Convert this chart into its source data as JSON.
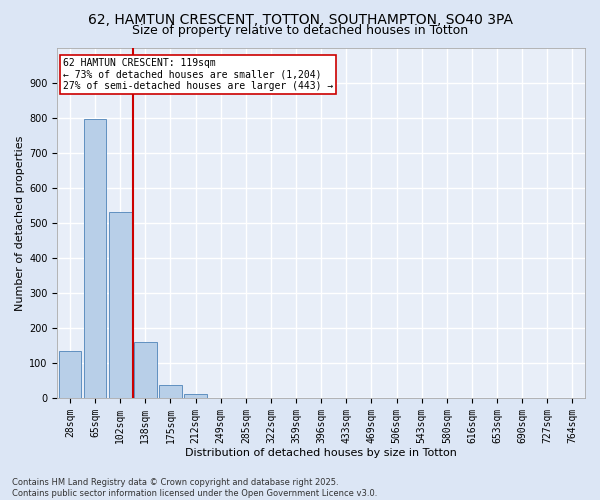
{
  "title_line1": "62, HAMTUN CRESCENT, TOTTON, SOUTHAMPTON, SO40 3PA",
  "title_line2": "Size of property relative to detached houses in Totton",
  "xlabel": "Distribution of detached houses by size in Totton",
  "ylabel": "Number of detached properties",
  "footnote1": "Contains HM Land Registry data © Crown copyright and database right 2025.",
  "footnote2": "Contains public sector information licensed under the Open Government Licence v3.0.",
  "categories": [
    "28sqm",
    "65sqm",
    "102sqm",
    "138sqm",
    "175sqm",
    "212sqm",
    "249sqm",
    "285sqm",
    "322sqm",
    "359sqm",
    "396sqm",
    "433sqm",
    "469sqm",
    "506sqm",
    "543sqm",
    "580sqm",
    "616sqm",
    "653sqm",
    "690sqm",
    "727sqm",
    "764sqm"
  ],
  "values": [
    135,
    795,
    530,
    160,
    37,
    12,
    0,
    0,
    0,
    0,
    0,
    0,
    0,
    0,
    0,
    0,
    0,
    0,
    0,
    0,
    0
  ],
  "bar_color": "#b8cfe8",
  "bar_edge_color": "#6090c0",
  "vline_x_pos": 2.5,
  "vline_color": "#cc0000",
  "annotation_line1": "62 HAMTUN CRESCENT: 119sqm",
  "annotation_line2": "← 73% of detached houses are smaller (1,204)",
  "annotation_line3": "27% of semi-detached houses are larger (443) →",
  "annotation_box_color": "#ffffff",
  "annotation_box_edge": "#cc0000",
  "ylim": [
    0,
    1000
  ],
  "yticks": [
    0,
    100,
    200,
    300,
    400,
    500,
    600,
    700,
    800,
    900,
    1000
  ],
  "bg_color": "#dce6f5",
  "axes_bg_color": "#e8eef8",
  "grid_color": "#ffffff",
  "title_fontsize": 10,
  "subtitle_fontsize": 9,
  "xlabel_fontsize": 8,
  "ylabel_fontsize": 8,
  "tick_fontsize": 7,
  "annot_fontsize": 7,
  "footnote_fontsize": 6
}
